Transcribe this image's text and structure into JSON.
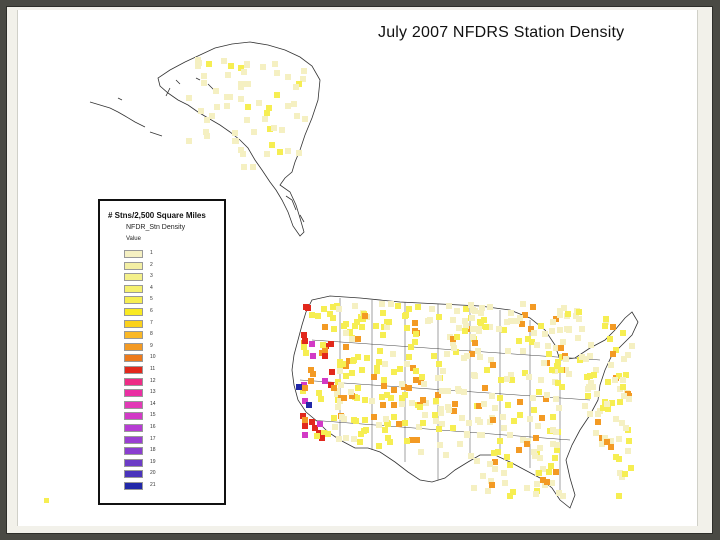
{
  "title": "July 2007 NFDRS Station Density",
  "legend": {
    "title": "# Stns/2,500 Square Miles",
    "layer": "NFDR_Stn Density",
    "value_label": "Value",
    "items": [
      {
        "label": "1",
        "color": "#f5f0c2"
      },
      {
        "label": "2",
        "color": "#f3efa4"
      },
      {
        "label": "3",
        "color": "#f4f08a"
      },
      {
        "label": "4",
        "color": "#f5f06e"
      },
      {
        "label": "5",
        "color": "#f6ee52"
      },
      {
        "label": "6",
        "color": "#f9ea22"
      },
      {
        "label": "7",
        "color": "#fbd21c"
      },
      {
        "label": "8",
        "color": "#fab826"
      },
      {
        "label": "9",
        "color": "#f39a24"
      },
      {
        "label": "10",
        "color": "#ed7a1c"
      },
      {
        "label": "11",
        "color": "#e2281c"
      },
      {
        "label": "12",
        "color": "#ee2d86"
      },
      {
        "label": "13",
        "color": "#ea2fa3"
      },
      {
        "label": "14",
        "color": "#e23ab6"
      },
      {
        "label": "15",
        "color": "#d23ac6"
      },
      {
        "label": "16",
        "color": "#b63cd3"
      },
      {
        "label": "17",
        "color": "#9a3ed2"
      },
      {
        "label": "18",
        "color": "#8a3ecf"
      },
      {
        "label": "19",
        "color": "#6c3cc6"
      },
      {
        "label": "20",
        "color": "#4a34bc"
      },
      {
        "label": "21",
        "color": "#2228a8"
      }
    ]
  },
  "colors": {
    "cell_light": "#f5f0c2",
    "cell_yellow": "#f6ee52",
    "cell_orange": "#f39a24",
    "cell_red": "#e2281c",
    "cell_magenta": "#d23ac6",
    "cell_blue": "#2228a8",
    "state_lines": "#333333"
  }
}
